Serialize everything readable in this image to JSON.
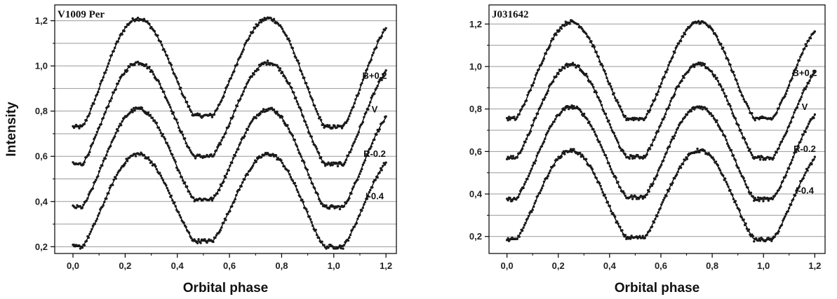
{
  "chart_data": [
    {
      "type": "scatter",
      "title": "V1009 Per",
      "xlabel": "Orbital phase",
      "ylabel": "Intensity",
      "xlim": [
        -0.07,
        1.24
      ],
      "ylim": [
        0.17,
        1.27
      ],
      "xticks": [
        "0,0",
        "0,2",
        "0,4",
        "0,6",
        "0,8",
        "1,0",
        "1,2"
      ],
      "yticks": [
        "0,2",
        "0,4",
        "0,6",
        "0,8",
        "1,0",
        "1,2"
      ],
      "grid": "horizontal",
      "series": [
        {
          "name": "B+0.2",
          "max": 1.21,
          "min_primary": 0.73,
          "min_secondary": 0.78
        },
        {
          "name": "V",
          "max": 1.015,
          "min_primary": 0.565,
          "min_secondary": 0.6
        },
        {
          "name": "R-0.2",
          "max": 0.81,
          "min_primary": 0.375,
          "min_secondary": 0.41
        },
        {
          "name": "I-0.4",
          "max": 0.61,
          "min_primary": 0.2,
          "min_secondary": 0.225
        }
      ],
      "styles": {
        "points": "#1a1a1a",
        "fit_line": "#000000",
        "grid": "#9a9a9a"
      }
    },
    {
      "type": "scatter",
      "title": "J031642",
      "xlabel": "Orbital phase",
      "ylabel": "",
      "xlim": [
        -0.07,
        1.24
      ],
      "ylim": [
        0.12,
        1.29
      ],
      "xticks": [
        "0,0",
        "0,2",
        "0,4",
        "0,6",
        "0,8",
        "1,0",
        "1,2"
      ],
      "yticks": [
        "0,2",
        "0,4",
        "0,6",
        "0,8",
        "1,0",
        "1,2"
      ],
      "grid": "horizontal",
      "series": [
        {
          "name": "B+0.2",
          "max": 1.21,
          "min_primary": 0.755,
          "min_secondary": 0.755
        },
        {
          "name": "V",
          "max": 1.01,
          "min_primary": 0.57,
          "min_secondary": 0.575
        },
        {
          "name": "R-0.2",
          "max": 0.81,
          "min_primary": 0.375,
          "min_secondary": 0.385
        },
        {
          "name": "I-0.4",
          "max": 0.605,
          "min_primary": 0.185,
          "min_secondary": 0.195
        }
      ],
      "styles": {
        "points": "#1a1a1a",
        "fit_line": "#000000",
        "grid": "#9a9a9a"
      }
    }
  ]
}
